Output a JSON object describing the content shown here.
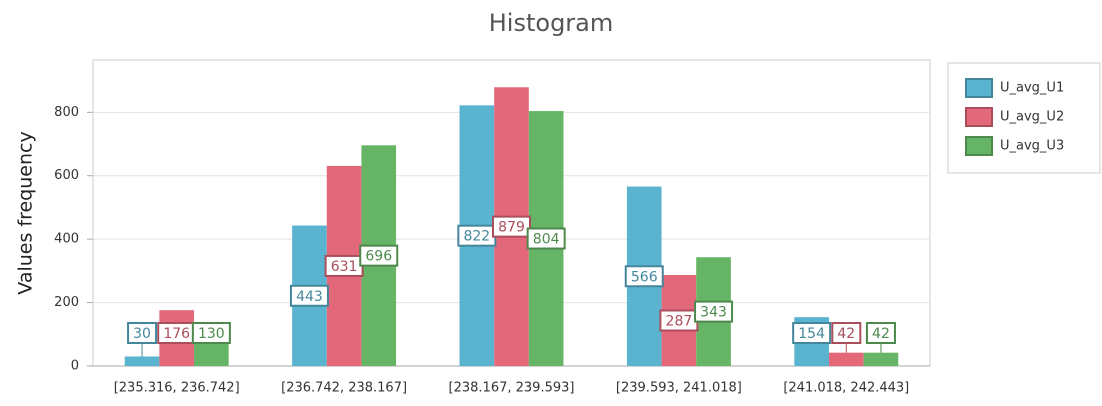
{
  "chart_data": {
    "type": "bar",
    "title": "Histogram",
    "y_label": "Values frequency",
    "categories": [
      "[235.316, 236.742]",
      "[236.742, 238.167]",
      "[238.167, 239.593]",
      "[239.593, 241.018]",
      "[241.018, 242.443]"
    ],
    "series": [
      {
        "name": "U_avg_U1",
        "color": "#5ab4d0",
        "values": [
          30,
          443,
          822,
          566,
          154
        ]
      },
      {
        "name": "U_avg_U2",
        "color": "#e2687a",
        "values": [
          176,
          631,
          879,
          287,
          42
        ]
      },
      {
        "name": "U_avg_U3",
        "color": "#66b566",
        "values": [
          130,
          696,
          804,
          343,
          42
        ]
      }
    ],
    "ylim": [
      0,
      965
    ],
    "yticks": [
      0,
      200,
      400,
      600,
      800
    ],
    "grid": true,
    "legend": "right"
  }
}
